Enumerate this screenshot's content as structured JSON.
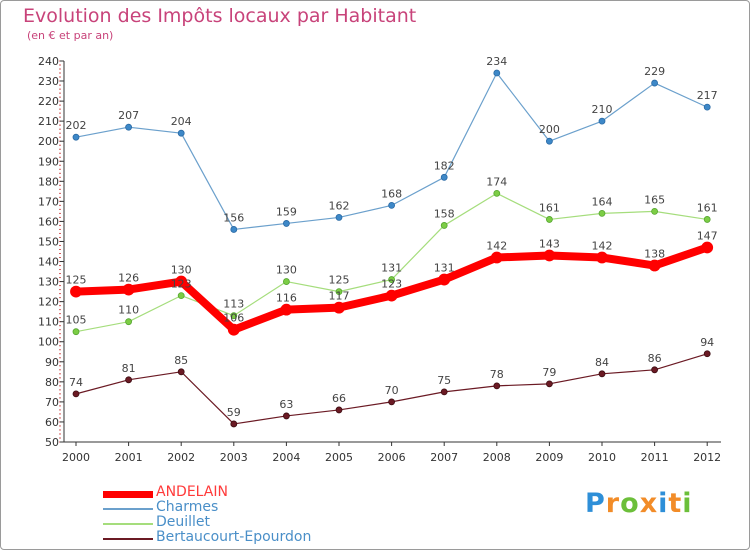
{
  "header": {
    "title": "Evolution des Impôts locaux par Habitant",
    "subtitle": "(en € et par an)"
  },
  "chart_data": {
    "type": "line",
    "x": [
      "2000",
      "2001",
      "2002",
      "2003",
      "2004",
      "2005",
      "2006",
      "2007",
      "2008",
      "2009",
      "2010",
      "2011",
      "2012"
    ],
    "ylim": [
      50,
      240
    ],
    "y_ticks": [
      50,
      60,
      70,
      80,
      90,
      100,
      110,
      120,
      130,
      140,
      150,
      160,
      170,
      180,
      190,
      200,
      210,
      220,
      230,
      240
    ],
    "grid": false,
    "legend_position": "bottom-left",
    "title": "Evolution des Impôts locaux par Habitant",
    "xlabel": "",
    "ylabel": "",
    "series": [
      {
        "name": "ANDELAIN",
        "color": "#ff0000",
        "values": [
          125,
          126,
          130,
          106,
          116,
          117,
          123,
          131,
          142,
          143,
          142,
          138,
          147
        ]
      },
      {
        "name": "Charmes",
        "color": "#6ba0cc",
        "values": [
          202,
          207,
          204,
          156,
          159,
          162,
          168,
          182,
          234,
          200,
          210,
          229,
          217
        ]
      },
      {
        "name": "Deuillet",
        "color": "#a5dd7c",
        "values": [
          105,
          110,
          123,
          113,
          130,
          125,
          131,
          158,
          174,
          161,
          164,
          165,
          161
        ]
      },
      {
        "name": "Bertaucourt-Epourdon",
        "color": "#6b1a24",
        "values": [
          74,
          81,
          85,
          59,
          63,
          66,
          70,
          75,
          78,
          79,
          84,
          86,
          94
        ]
      }
    ]
  },
  "logo": {
    "text": "Proxiti",
    "letters": [
      {
        "ch": "P",
        "color": "#2e8fd8"
      },
      {
        "ch": "r",
        "color": "#f28c28"
      },
      {
        "ch": "o",
        "color": "#6cbf3a"
      },
      {
        "ch": "x",
        "color": "#f28c28"
      },
      {
        "ch": "i",
        "color": "#2e8fd8"
      },
      {
        "ch": "t",
        "color": "#f28c28"
      },
      {
        "ch": "i",
        "color": "#6cbf3a"
      }
    ]
  }
}
